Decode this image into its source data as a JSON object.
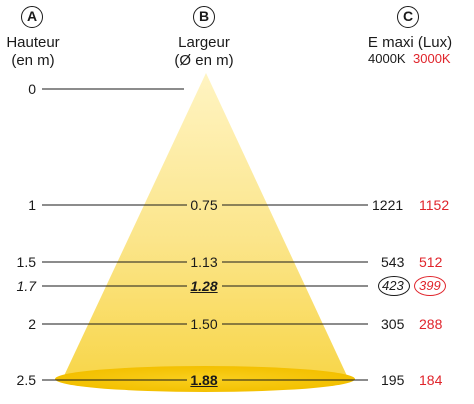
{
  "columns": {
    "a": {
      "badge": "A",
      "title": "Hauteur",
      "subtitle": "(en m)"
    },
    "b": {
      "badge": "B",
      "title": "Largeur",
      "subtitle": "(Ø en m)"
    },
    "c": {
      "badge": "C",
      "title": "E maxi (Lux)",
      "k4000": "4000K",
      "k3000": "3000K"
    }
  },
  "rows": [
    {
      "height": "0",
      "width": "",
      "lux4000": "",
      "lux3000": ""
    },
    {
      "height": "1",
      "width": "0.75",
      "lux4000": "1221",
      "lux3000": "1152"
    },
    {
      "height": "1.5",
      "width": "1.13",
      "lux4000": "543",
      "lux3000": "512"
    },
    {
      "height": "1.7",
      "width": "1.28",
      "lux4000": "423",
      "lux3000": "399"
    },
    {
      "height": "2",
      "width": "1.50",
      "lux4000": "305",
      "lux3000": "288"
    },
    {
      "height": "2.5",
      "width": "1.88",
      "lux4000": "195",
      "lux3000": "184"
    }
  ],
  "colors": {
    "accent_red": "#e0242b",
    "cone_yellow": "#f7c600",
    "ink": "#1a1a1a"
  }
}
